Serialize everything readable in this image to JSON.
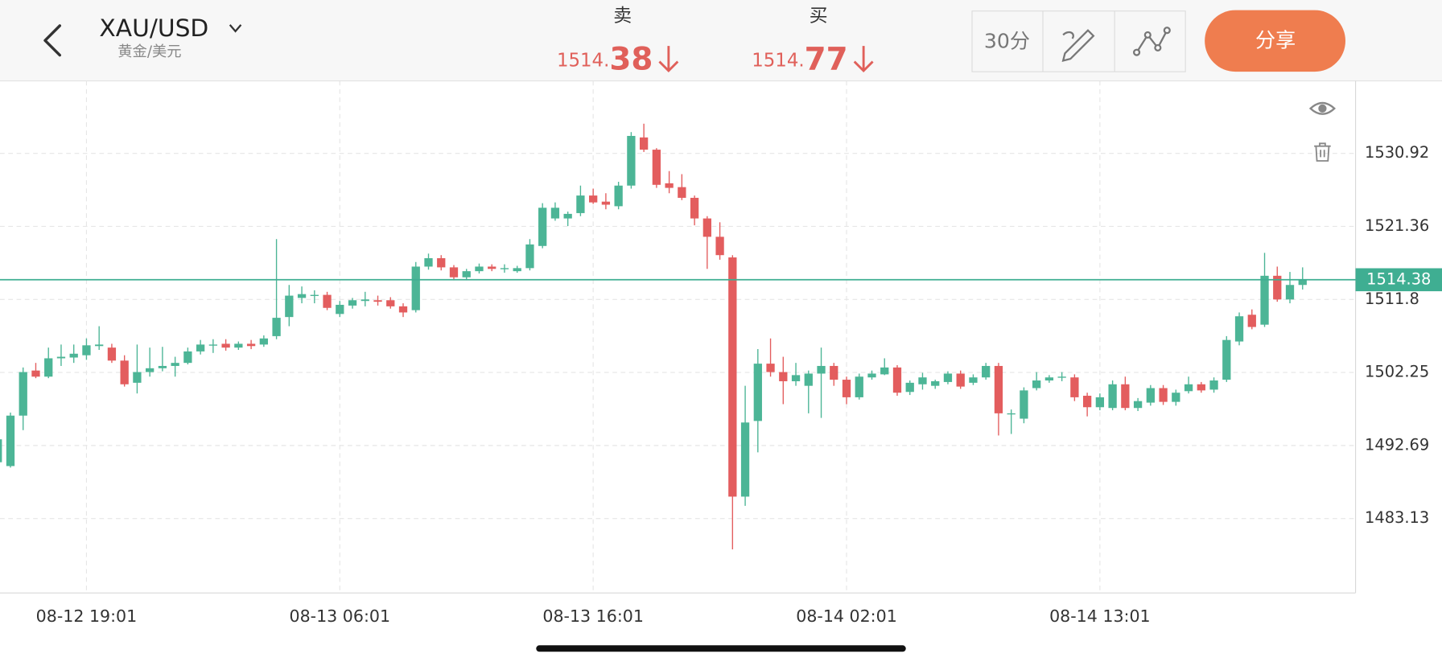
{
  "header": {
    "symbol": "XAU/USD",
    "symbol_name": "黄金/美元",
    "sell": {
      "label": "卖",
      "int": "1514.",
      "frac": "38"
    },
    "buy": {
      "label": "买",
      "int": "1514.",
      "frac": "77"
    },
    "interval": "30分",
    "share": "分享"
  },
  "chart_data": {
    "type": "candlestick",
    "categories": [
      null,
      null,
      null,
      null,
      null,
      null,
      null,
      "08-12 19:01",
      null,
      null,
      null,
      null,
      null,
      null,
      null,
      null,
      null,
      null,
      null,
      null,
      null,
      null,
      null,
      null,
      null,
      null,
      null,
      "08-13 06:01",
      null,
      null,
      null,
      null,
      null,
      null,
      null,
      null,
      null,
      null,
      null,
      null,
      null,
      null,
      null,
      null,
      null,
      null,
      null,
      "08-13 16:01",
      null,
      null,
      null,
      null,
      null,
      null,
      null,
      null,
      null,
      null,
      null,
      null,
      null,
      null,
      null,
      null,
      null,
      null,
      null,
      "08-14 02:01",
      null,
      null,
      null,
      null,
      null,
      null,
      null,
      null,
      null,
      null,
      null,
      null,
      null,
      null,
      null,
      null,
      null,
      null,
      null,
      "08-14 13:01",
      null,
      null,
      null,
      null,
      null,
      null,
      null,
      null,
      null,
      null,
      null,
      null,
      null,
      null,
      null,
      null
    ],
    "open": [
      1490.5,
      1490.0,
      1496.6,
      1502.5,
      1501.7,
      1504.1,
      1504.2,
      1504.5,
      1505.7,
      1505.5,
      1503.8,
      1500.9,
      1502.3,
      1502.8,
      1503.1,
      1503.5,
      1505.0,
      1505.8,
      1506.0,
      1505.5,
      1506.0,
      1505.9,
      1507.0,
      1509.5,
      1512.0,
      1512.3,
      1512.4,
      1509.9,
      1511.0,
      1511.6,
      1511.7,
      1511.7,
      1510.9,
      1510.4,
      1516.1,
      1517.2,
      1516.0,
      1514.7,
      1515.5,
      1516.1,
      1515.8,
      1515.5,
      1515.9,
      1518.8,
      1522.4,
      1522.4,
      1523.1,
      1525.4,
      1524.6,
      1524.0,
      1526.7,
      1533.0,
      1531.4,
      1527.0,
      1526.5,
      1525.1,
      1522.4,
      1520.0,
      1517.3,
      1486.0,
      1495.9,
      1503.4,
      1502.3,
      1501.1,
      1500.5,
      1502.1,
      1503.1,
      1501.3,
      1499.0,
      1501.6,
      1502.0,
      1502.9,
      1499.7,
      1500.7,
      1500.5,
      1501.0,
      1502.1,
      1500.9,
      1501.6,
      1503.1,
      1496.8,
      1496.2,
      1500.2,
      1501.2,
      1501.6,
      1501.6,
      1499.2,
      1497.7,
      1497.6,
      1500.7,
      1497.6,
      1498.3,
      1500.2,
      1498.4,
      1499.8,
      1500.7,
      1500.0,
      1501.3,
      1506.3,
      1509.8,
      1508.5,
      1514.9,
      1511.8,
      1513.7
    ],
    "high": [
      1494,
      1497,
      1502.9,
      1503.5,
      1505.5,
      1505.9,
      1505.9,
      1506.7,
      1508.3,
      1506,
      1504.5,
      1505.9,
      1505.5,
      1505.6,
      1504.3,
      1505.5,
      1506.5,
      1506.6,
      1506.6,
      1506.3,
      1506.5,
      1507.1,
      1519.7,
      1513.7,
      1513.5,
      1513.0,
      1512.8,
      1511.6,
      1512.0,
      1512.8,
      1512.3,
      1512.1,
      1511.3,
      1516.7,
      1517.8,
      1517.6,
      1516.3,
      1515.8,
      1516.5,
      1516.4,
      1516.4,
      1516.2,
      1519.7,
      1524.4,
      1524.5,
      1523.3,
      1526.7,
      1526.3,
      1525.7,
      1527.2,
      1533.7,
      1534.8,
      1531.6,
      1528.6,
      1528.2,
      1525.4,
      1522.7,
      1521.9,
      1517.6,
      1500.5,
      1505.3,
      1506.7,
      1504.3,
      1503.5,
      1502.5,
      1505.5,
      1503.5,
      1501.7,
      1502.1,
      1502.5,
      1504.1,
      1503.2,
      1501.2,
      1502.2,
      1501.3,
      1502.4,
      1502.5,
      1502.0,
      1503.5,
      1503.5,
      1497.4,
      1500.3,
      1502.3,
      1501.9,
      1502.3,
      1502.0,
      1499.6,
      1499.5,
      1501.2,
      1501.7,
      1498.9,
      1500.6,
      1500.6,
      1500.0,
      1501.7,
      1501.0,
      1501.6,
      1507.0,
      1510.1,
      1510.5,
      1517.9,
      1516.1,
      1515.4,
      1516.0
    ],
    "low": [
      1490,
      1489.8,
      1494.7,
      1501.5,
      1501.5,
      1503.1,
      1503.5,
      1503.9,
      1505.2,
      1503.5,
      1500.4,
      1499.5,
      1501.7,
      1502.4,
      1501.7,
      1503.3,
      1504.6,
      1504.8,
      1505.1,
      1505.2,
      1505.3,
      1505.6,
      1506.6,
      1508.3,
      1511.3,
      1511.3,
      1510.4,
      1509.5,
      1510.6,
      1510.9,
      1511.0,
      1510.6,
      1509.5,
      1510.1,
      1515.7,
      1515.6,
      1514.3,
      1514.3,
      1515.2,
      1515.5,
      1515.3,
      1515.3,
      1515.6,
      1518.5,
      1522.1,
      1521.4,
      1522.7,
      1524.3,
      1523.6,
      1523.6,
      1526.3,
      1531.1,
      1526.4,
      1525.7,
      1524.8,
      1521.5,
      1515.8,
      1517.0,
      1479.1,
      1484.8,
      1491.8,
      1501.7,
      1498.1,
      1500.5,
      1496.9,
      1496.3,
      1500.5,
      1498.1,
      1498.7,
      1501.3,
      1501.9,
      1499.2,
      1499.3,
      1500.0,
      1500.1,
      1500.7,
      1500.1,
      1500.6,
      1501.3,
      1494.0,
      1494.2,
      1495.6,
      1499.9,
      1500.9,
      1501.1,
      1498.5,
      1496.5,
      1497.3,
      1497.3,
      1497.3,
      1497.2,
      1497.9,
      1498.0,
      1497.9,
      1499.5,
      1499.6,
      1499.6,
      1501.0,
      1505.8,
      1507.9,
      1508.2,
      1511.5,
      1511.3,
      1513.1
    ],
    "close": [
      1493.5,
      1496.6,
      1502.3,
      1501.7,
      1504.1,
      1504.3,
      1504.7,
      1505.8,
      1505.9,
      1503.8,
      1500.7,
      1502.3,
      1502.8,
      1503.1,
      1503.5,
      1505.0,
      1505.9,
      1505.9,
      1505.5,
      1506.0,
      1505.7,
      1506.7,
      1509.4,
      1512.3,
      1512.5,
      1512.4,
      1510.7,
      1511.1,
      1511.7,
      1511.8,
      1511.5,
      1510.9,
      1510.1,
      1516.1,
      1517.2,
      1516.0,
      1514.7,
      1515.5,
      1516.1,
      1515.8,
      1515.9,
      1515.9,
      1519.0,
      1523.8,
      1523.8,
      1523.0,
      1525.4,
      1524.5,
      1524.2,
      1526.7,
      1533.2,
      1531.4,
      1526.8,
      1526.4,
      1525.1,
      1522.4,
      1520.0,
      1517.6,
      1486.0,
      1495.7,
      1503.4,
      1502.3,
      1501.1,
      1501.9,
      1502.1,
      1503.1,
      1501.3,
      1499.0,
      1501.7,
      1502.1,
      1502.9,
      1499.6,
      1500.9,
      1501.6,
      1501.1,
      1502.1,
      1500.4,
      1501.6,
      1503.1,
      1496.9,
      1496.9,
      1499.9,
      1501.2,
      1501.6,
      1501.7,
      1499.0,
      1497.7,
      1499.0,
      1500.7,
      1497.6,
      1498.5,
      1500.2,
      1498.4,
      1499.6,
      1500.7,
      1499.9,
      1501.2,
      1506.5,
      1509.6,
      1508.2,
      1514.9,
      1511.8,
      1513.7,
      1514.38
    ],
    "up_color": "#4cb596",
    "down_color": "#e35d5e",
    "last_price": 1514.38,
    "last_price_color": "#3fae92",
    "ylim": [
      1473.4,
      1540.4
    ],
    "yticks": [
      1530.92,
      1521.36,
      1511.8,
      1502.25,
      1492.69,
      1483.13
    ],
    "grid": true
  }
}
